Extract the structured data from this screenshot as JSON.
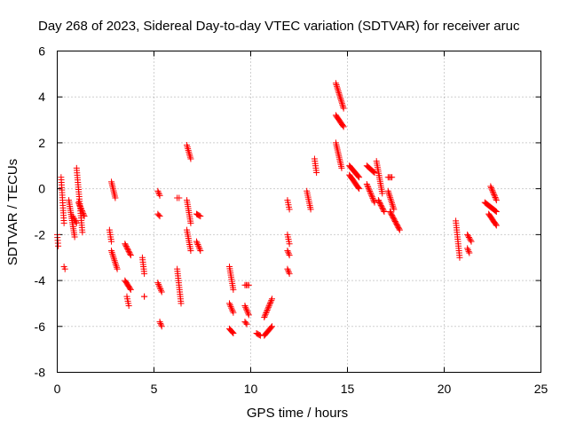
{
  "chart_data": {
    "type": "scatter",
    "title": "Day 268 of 2023, Sidereal Day-to-day VTEC variation (SDTVAR) for receiver aruc",
    "xlabel": "GPS time / hours",
    "ylabel": "SDTVAR / TECUs",
    "xlim": [
      0,
      25
    ],
    "ylim": [
      -8,
      6
    ],
    "xticks": [
      0,
      5,
      10,
      15,
      20,
      25
    ],
    "yticks": [
      -8,
      -6,
      -4,
      -2,
      0,
      2,
      4,
      6
    ],
    "grid": true,
    "marker": "+",
    "color": "#ff0000",
    "segments": [
      {
        "t0": 0.0,
        "t1": 0.05,
        "y0": -2.0,
        "y1": -2.5
      },
      {
        "t0": 0.2,
        "t1": 0.35,
        "y0": 0.5,
        "y1": -1.5
      },
      {
        "t0": 0.35,
        "t1": 0.4,
        "y0": -3.4,
        "y1": -3.5
      },
      {
        "t0": 0.6,
        "t1": 0.9,
        "y0": -0.5,
        "y1": -2.1
      },
      {
        "t0": 0.8,
        "t1": 1.0,
        "y0": -1.2,
        "y1": -1.5
      },
      {
        "t0": 1.0,
        "t1": 1.3,
        "y0": 0.9,
        "y1": -1.9
      },
      {
        "t0": 1.1,
        "t1": 1.4,
        "y0": -0.6,
        "y1": -1.2
      },
      {
        "t0": 2.7,
        "t1": 2.8,
        "y0": -1.8,
        "y1": -2.3
      },
      {
        "t0": 2.8,
        "t1": 3.0,
        "y0": 0.3,
        "y1": -0.4
      },
      {
        "t0": 2.8,
        "t1": 3.1,
        "y0": -2.7,
        "y1": -3.5
      },
      {
        "t0": 3.5,
        "t1": 3.8,
        "y0": -2.4,
        "y1": -2.9
      },
      {
        "t0": 3.5,
        "t1": 3.8,
        "y0": -4.0,
        "y1": -4.4
      },
      {
        "t0": 3.6,
        "t1": 3.7,
        "y0": -4.7,
        "y1": -5.1
      },
      {
        "t0": 4.4,
        "t1": 4.5,
        "y0": -3.0,
        "y1": -3.7
      },
      {
        "t0": 4.5,
        "t1": 4.5,
        "y0": -4.7,
        "y1": -4.7
      },
      {
        "t0": 5.2,
        "t1": 5.3,
        "y0": -0.1,
        "y1": -0.3
      },
      {
        "t0": 5.2,
        "t1": 5.3,
        "y0": -1.1,
        "y1": -1.2
      },
      {
        "t0": 5.2,
        "t1": 5.4,
        "y0": -4.1,
        "y1": -4.5
      },
      {
        "t0": 5.3,
        "t1": 5.4,
        "y0": -5.8,
        "y1": -6.0
      },
      {
        "t0": 6.2,
        "t1": 6.3,
        "y0": -0.4,
        "y1": -0.4
      },
      {
        "t0": 6.2,
        "t1": 6.4,
        "y0": -3.5,
        "y1": -5.0
      },
      {
        "t0": 6.7,
        "t1": 6.9,
        "y0": 1.9,
        "y1": 1.3
      },
      {
        "t0": 6.7,
        "t1": 6.9,
        "y0": -0.5,
        "y1": -1.5
      },
      {
        "t0": 6.7,
        "t1": 6.9,
        "y0": -1.8,
        "y1": -2.7
      },
      {
        "t0": 7.2,
        "t1": 7.4,
        "y0": -1.1,
        "y1": -1.2
      },
      {
        "t0": 7.2,
        "t1": 7.4,
        "y0": -2.3,
        "y1": -2.7
      },
      {
        "t0": 8.9,
        "t1": 9.1,
        "y0": -3.4,
        "y1": -4.4
      },
      {
        "t0": 8.9,
        "t1": 9.1,
        "y0": -5.0,
        "y1": -5.4
      },
      {
        "t0": 8.9,
        "t1": 9.1,
        "y0": -6.1,
        "y1": -6.3
      },
      {
        "t0": 9.7,
        "t1": 9.9,
        "y0": -4.2,
        "y1": -4.2
      },
      {
        "t0": 9.7,
        "t1": 9.9,
        "y0": -5.1,
        "y1": -5.5
      },
      {
        "t0": 9.7,
        "t1": 9.8,
        "y0": -5.8,
        "y1": -5.9
      },
      {
        "t0": 10.3,
        "t1": 10.5,
        "y0": -6.3,
        "y1": -6.4
      },
      {
        "t0": 10.7,
        "t1": 11.1,
        "y0": -5.6,
        "y1": -4.8
      },
      {
        "t0": 10.7,
        "t1": 11.1,
        "y0": -6.4,
        "y1": -6.0
      },
      {
        "t0": 11.9,
        "t1": 12.0,
        "y0": -0.5,
        "y1": -0.9
      },
      {
        "t0": 11.9,
        "t1": 12.0,
        "y0": -2.0,
        "y1": -2.4
      },
      {
        "t0": 11.9,
        "t1": 12.0,
        "y0": -2.7,
        "y1": -2.9
      },
      {
        "t0": 11.9,
        "t1": 12.0,
        "y0": -3.5,
        "y1": -3.7
      },
      {
        "t0": 12.9,
        "t1": 13.1,
        "y0": -0.1,
        "y1": -0.9
      },
      {
        "t0": 13.3,
        "t1": 13.4,
        "y0": 1.3,
        "y1": 0.7
      },
      {
        "t0": 14.4,
        "t1": 14.8,
        "y0": 4.6,
        "y1": 3.5
      },
      {
        "t0": 14.4,
        "t1": 14.8,
        "y0": 3.2,
        "y1": 2.7
      },
      {
        "t0": 14.4,
        "t1": 14.7,
        "y0": 2.0,
        "y1": 0.9
      },
      {
        "t0": 15.1,
        "t1": 15.6,
        "y0": 1.0,
        "y1": 0.5
      },
      {
        "t0": 15.1,
        "t1": 15.6,
        "y0": 0.6,
        "y1": 0.0
      },
      {
        "t0": 16.0,
        "t1": 16.4,
        "y0": 1.0,
        "y1": 0.7
      },
      {
        "t0": 16.0,
        "t1": 16.4,
        "y0": 0.2,
        "y1": -0.6
      },
      {
        "t0": 16.5,
        "t1": 16.8,
        "y0": 1.2,
        "y1": -0.2
      },
      {
        "t0": 16.6,
        "t1": 16.9,
        "y0": -0.5,
        "y1": -1.0
      },
      {
        "t0": 17.1,
        "t1": 17.3,
        "y0": 0.5,
        "y1": 0.5
      },
      {
        "t0": 17.1,
        "t1": 17.4,
        "y0": -0.1,
        "y1": -0.9
      },
      {
        "t0": 17.2,
        "t1": 17.7,
        "y0": -1.0,
        "y1": -1.8
      },
      {
        "t0": 20.6,
        "t1": 20.8,
        "y0": -1.4,
        "y1": -3.0
      },
      {
        "t0": 21.2,
        "t1": 21.4,
        "y0": -2.0,
        "y1": -2.3
      },
      {
        "t0": 21.2,
        "t1": 21.3,
        "y0": -2.6,
        "y1": -2.8
      },
      {
        "t0": 22.1,
        "t1": 22.7,
        "y0": -0.6,
        "y1": -1.0
      },
      {
        "t0": 22.3,
        "t1": 22.7,
        "y0": -1.1,
        "y1": -1.6
      },
      {
        "t0": 22.4,
        "t1": 22.7,
        "y0": 0.1,
        "y1": -0.5
      }
    ]
  }
}
